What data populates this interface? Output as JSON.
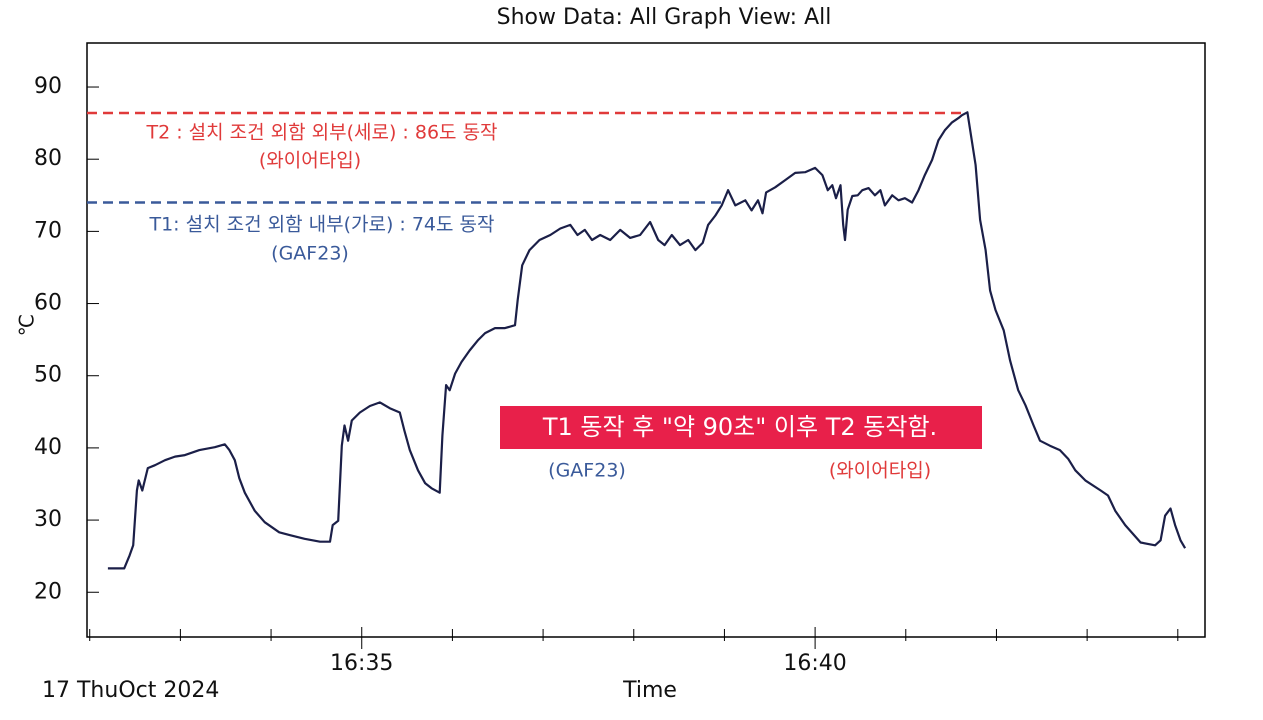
{
  "chart_data": {
    "type": "line",
    "title": "Show Data: All   Graph View: All",
    "date_label": "17 ThuOct 2024",
    "x_label": "Time",
    "y_label": "℃",
    "xlim": [
      31.97,
      44.3
    ],
    "xticks": [
      {
        "value": 35,
        "label": "16:35"
      },
      {
        "value": 40,
        "label": "16:40"
      }
    ],
    "xminor_ticks": [
      32,
      33,
      34,
      36,
      37,
      38,
      39,
      41,
      42,
      43,
      44
    ],
    "ylim": [
      13.8,
      96.1
    ],
    "yticks": [
      20,
      30,
      40,
      50,
      60,
      70,
      80,
      90
    ],
    "x": [
      32.2,
      32.38,
      32.44,
      32.48,
      32.52,
      32.54,
      32.58,
      32.64,
      32.72,
      32.83,
      32.94,
      33.05,
      33.21,
      33.38,
      33.49,
      33.54,
      33.6,
      33.65,
      33.71,
      33.82,
      33.93,
      34.09,
      34.21,
      34.37,
      34.54,
      34.65,
      34.68,
      34.74,
      34.78,
      34.81,
      34.85,
      34.89,
      34.98,
      35.09,
      35.2,
      35.31,
      35.42,
      35.47,
      35.53,
      35.62,
      35.7,
      35.77,
      35.86,
      35.89,
      35.93,
      35.97,
      36.03,
      36.1,
      36.19,
      36.28,
      36.36,
      36.47,
      36.58,
      36.69,
      36.72,
      36.77,
      36.85,
      36.96,
      37.08,
      37.19,
      37.3,
      37.38,
      37.46,
      37.54,
      37.63,
      37.74,
      37.85,
      37.96,
      38.07,
      38.18,
      38.27,
      38.34,
      38.42,
      38.51,
      38.6,
      38.68,
      38.76,
      38.82,
      38.9,
      38.97,
      39.04,
      39.12,
      39.23,
      39.3,
      39.37,
      39.42,
      39.46,
      39.56,
      39.67,
      39.78,
      39.89,
      40.0,
      40.08,
      40.14,
      40.19,
      40.23,
      40.28,
      40.31,
      40.33,
      40.36,
      40.41,
      40.47,
      40.52,
      40.59,
      40.66,
      40.72,
      40.77,
      40.85,
      40.92,
      40.99,
      41.07,
      41.14,
      41.21,
      41.29,
      41.36,
      41.43,
      41.51,
      41.58,
      41.62,
      41.68,
      41.71,
      41.77,
      41.82,
      41.88,
      41.93,
      41.99,
      42.08,
      42.15,
      42.24,
      42.32,
      42.41,
      42.48,
      42.59,
      42.7,
      42.79,
      42.87,
      42.98,
      43.15,
      43.23,
      43.31,
      43.42,
      43.59,
      43.75,
      43.81,
      43.86,
      43.92,
      43.97,
      44.03,
      44.08
    ],
    "series": [
      {
        "color": "#1b1f48",
        "values": [
          23.3,
          23.3,
          25.1,
          26.5,
          34.1,
          35.5,
          34.1,
          37.2,
          37.6,
          38.3,
          38.8,
          39.0,
          39.7,
          40.1,
          40.5,
          39.7,
          38.3,
          35.8,
          33.8,
          31.3,
          29.7,
          28.3,
          27.9,
          27.4,
          27.0,
          27.0,
          29.3,
          29.9,
          40.3,
          43.1,
          41.0,
          43.8,
          44.9,
          45.8,
          46.3,
          45.5,
          44.9,
          42.4,
          39.7,
          36.9,
          35.1,
          34.4,
          33.8,
          41.7,
          48.7,
          48.0,
          50.3,
          51.9,
          53.5,
          54.9,
          55.9,
          56.6,
          56.6,
          57.0,
          60.5,
          65.3,
          67.4,
          68.8,
          69.5,
          70.4,
          70.9,
          69.5,
          70.2,
          68.8,
          69.5,
          68.8,
          70.2,
          69.1,
          69.5,
          71.3,
          68.8,
          68.1,
          69.5,
          68.1,
          68.8,
          67.4,
          68.4,
          70.9,
          72.2,
          73.6,
          75.7,
          73.6,
          74.3,
          72.9,
          74.3,
          72.5,
          75.4,
          76.1,
          77.1,
          78.1,
          78.2,
          78.8,
          77.8,
          75.7,
          76.4,
          74.6,
          76.4,
          70.9,
          68.8,
          73.0,
          74.9,
          75.0,
          75.7,
          76.0,
          75.0,
          75.7,
          73.6,
          75.0,
          74.3,
          74.6,
          74.0,
          75.7,
          77.8,
          79.9,
          82.6,
          84.0,
          85.1,
          85.7,
          86.1,
          86.5,
          84.0,
          79.2,
          71.6,
          67.4,
          61.8,
          59.1,
          56.3,
          52.1,
          48.0,
          45.9,
          43.1,
          41.0,
          40.3,
          39.7,
          38.5,
          36.9,
          35.5,
          34.1,
          33.4,
          31.3,
          29.3,
          26.9,
          26.5,
          27.2,
          30.6,
          31.6,
          29.3,
          27.2,
          26.1
        ]
      }
    ],
    "reference_lines": [
      {
        "y": 86.4,
        "x_end": 41.67,
        "color": "#e03a3a"
      },
      {
        "y": 74.0,
        "x_end": 39.0,
        "color": "#3a5a9a"
      }
    ],
    "annotations": [
      {
        "text": "T2 : 설치 조건 외함 외부(세로) : 86도 동작",
        "color": "#e03a3a"
      },
      {
        "text": "(와이어타입)",
        "color": "#e03a3a"
      },
      {
        "text": "T1: 설치 조건 외함 내부(가로) : 74도 동작",
        "color": "#3a5a9a"
      },
      {
        "text": "(GAF23)",
        "color": "#3a5a9a"
      },
      {
        "text": "T1 동작 후 \"약 90초\"  이후 T2 동작함.",
        "color": "#ffffff",
        "background": "#e8204a"
      },
      {
        "text": "(GAF23)",
        "color": "#3a5a9a"
      },
      {
        "text": "(와이어타입)",
        "color": "#e03a3a"
      }
    ]
  }
}
